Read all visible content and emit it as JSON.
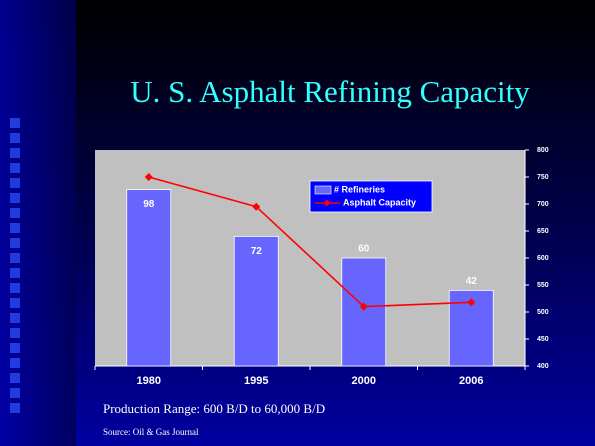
{
  "chart_data": {
    "type": "bar_line",
    "title": "U. S. Asphalt Refining Capacity",
    "categories": [
      "1980",
      "1995",
      "2000",
      "2006"
    ],
    "series": [
      {
        "name": "# Refineries",
        "color": "#6666ff",
        "values": [
          98,
          72,
          60,
          42
        ]
      },
      {
        "name": "Asphalt Capacity",
        "color": "#ff0000",
        "values": [
          750,
          695,
          510,
          518
        ],
        "axis": "y2"
      }
    ],
    "ylim": [
      0,
      120
    ],
    "y2lim": [
      400,
      800
    ],
    "y2ticks": [
      400,
      450,
      500,
      550,
      600,
      650,
      700,
      750,
      800
    ],
    "legend": "top-right",
    "grid": false,
    "notes": [
      "Production Range: 600 B/D to 60,000 B/D",
      "Source: Oil & Gas Journal"
    ]
  }
}
